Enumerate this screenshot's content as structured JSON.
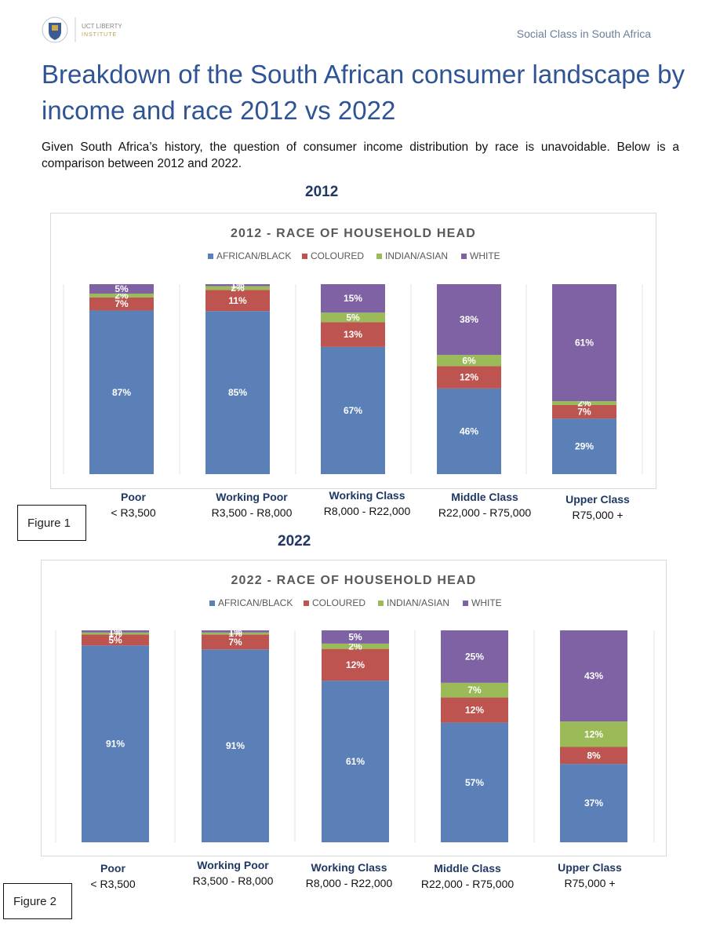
{
  "header": {
    "logo_text_1": "UCT LIBERTY",
    "logo_text_2": "INSTITUTE",
    "right_text": "Social Class in South Africa"
  },
  "page": {
    "title": "Breakdown of the South African consumer landscape by income and race 2012 vs 2022",
    "intro": "Given South Africa’s history, the question of consumer income distribution by race is unavoidable. Below is a comparison between 2012 and 2022."
  },
  "colors": {
    "african_black": "#5b80b8",
    "coloured": "#bd5450",
    "indian_asian": "#9bbb59",
    "white": "#7e62a3",
    "title": "#2f5496"
  },
  "categories": [
    {
      "name": "Poor",
      "range": "< R3,500"
    },
    {
      "name": "Working Poor",
      "range": "R3,500 - R8,000"
    },
    {
      "name": "Working Class",
      "range": "R8,000 - R22,000"
    },
    {
      "name": "Middle Class",
      "range": "R22,000 - R75,000"
    },
    {
      "name": "Upper Class",
      "range": "R75,000 +"
    }
  ],
  "figures": {
    "fig1": "Figure 1",
    "fig2": "Figure 2"
  },
  "chart_data": [
    {
      "year_heading": "2012",
      "type": "bar",
      "stacked": true,
      "title": "2012 - RACE OF HOUSEHOLD HEAD",
      "legend_position": "top",
      "categories": [
        "Poor",
        "Working Poor",
        "Working Class",
        "Middle Class",
        "Upper Class"
      ],
      "series": [
        {
          "name": "AFRICAN/BLACK",
          "values": [
            87,
            85,
            67,
            46,
            29
          ]
        },
        {
          "name": "COLOURED",
          "values": [
            7,
            11,
            13,
            12,
            7
          ]
        },
        {
          "name": "INDIAN/ASIAN",
          "values": [
            2,
            2,
            5,
            6,
            2
          ]
        },
        {
          "name": "WHITE",
          "values": [
            5,
            1,
            15,
            38,
            61
          ]
        }
      ],
      "ylim": [
        0,
        100
      ]
    },
    {
      "year_heading": "2022",
      "type": "bar",
      "stacked": true,
      "title": "2022 - RACE OF HOUSEHOLD HEAD",
      "legend_position": "top",
      "categories": [
        "Poor",
        "Working Poor",
        "Working Class",
        "Middle Class",
        "Upper Class"
      ],
      "series": [
        {
          "name": "AFRICAN/BLACK",
          "values": [
            91,
            91,
            61,
            57,
            37
          ]
        },
        {
          "name": "COLOURED",
          "values": [
            5,
            7,
            12,
            12,
            8
          ]
        },
        {
          "name": "INDIAN/ASIAN",
          "values": [
            1,
            1,
            2,
            7,
            12
          ]
        },
        {
          "name": "WHITE",
          "values": [
            1,
            1,
            5,
            25,
            43
          ]
        }
      ],
      "ylim": [
        0,
        100
      ]
    }
  ]
}
